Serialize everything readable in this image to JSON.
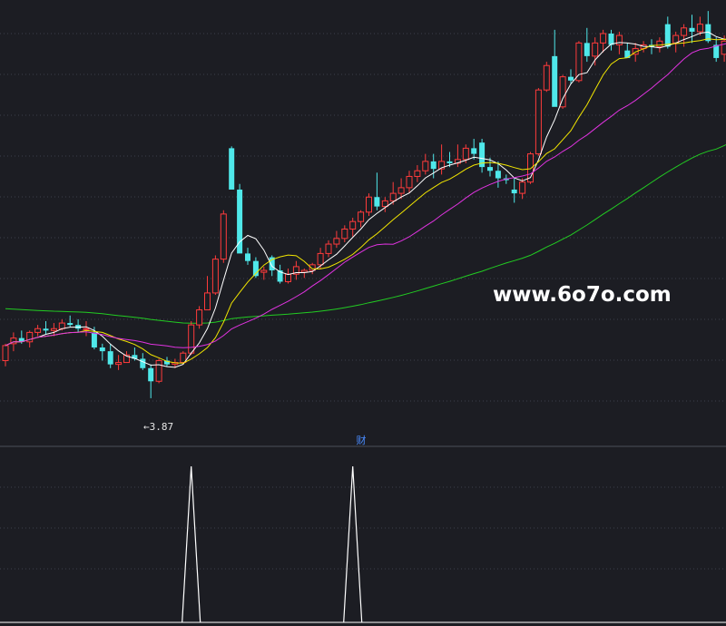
{
  "colors": {
    "background": "#1c1d23",
    "grid": "#3b3f4b",
    "up_candle": "#ff3b3b",
    "down_candle": "#4fe8ea",
    "ma5": "#ffffff",
    "ma10": "#f2e600",
    "ma20": "#e033e0",
    "ma60": "#22cc22",
    "indicator_line": "#ffffff",
    "annotation": "#e8e8e8",
    "panel_label": "#4a8cff",
    "watermark": "#ffffff"
  },
  "price_panel": {
    "low_annotation": "←3.87",
    "watermark": "www.6o7o.com"
  },
  "indicator_panel": {
    "label": "财"
  },
  "chart_data": [
    {
      "type": "candlestick",
      "title": "",
      "xlabel": "",
      "ylabel": "",
      "ylim": [
        3.72,
        5.95
      ],
      "grid": true,
      "series": [
        {
          "name": "",
          "candles": [
            [
              4.07,
              4.16,
              4.04,
              4.15
            ],
            [
              4.16,
              4.22,
              4.12,
              4.19
            ],
            [
              4.19,
              4.23,
              4.16,
              4.17
            ],
            [
              4.17,
              4.23,
              4.14,
              4.22
            ],
            [
              4.22,
              4.26,
              4.2,
              4.24
            ],
            [
              4.24,
              4.28,
              4.21,
              4.23
            ],
            [
              4.23,
              4.27,
              4.2,
              4.24
            ],
            [
              4.24,
              4.29,
              4.23,
              4.27
            ],
            [
              4.27,
              4.31,
              4.25,
              4.26
            ],
            [
              4.26,
              4.29,
              4.22,
              4.24
            ],
            [
              4.24,
              4.28,
              4.2,
              4.24
            ],
            [
              4.22,
              4.25,
              4.13,
              4.14
            ],
            [
              4.14,
              4.16,
              4.07,
              4.12
            ],
            [
              4.12,
              4.16,
              4.03,
              4.05
            ],
            [
              4.05,
              4.1,
              4.02,
              4.06
            ],
            [
              4.06,
              4.12,
              4.06,
              4.1
            ],
            [
              4.1,
              4.14,
              4.07,
              4.08
            ],
            [
              4.08,
              4.11,
              4.02,
              4.03
            ],
            [
              4.03,
              4.05,
              3.87,
              3.96
            ],
            [
              3.96,
              4.08,
              3.95,
              4.07
            ],
            [
              4.07,
              4.09,
              4.04,
              4.05
            ],
            [
              4.05,
              4.08,
              4.03,
              4.06
            ],
            [
              4.06,
              4.12,
              4.05,
              4.11
            ],
            [
              4.11,
              4.28,
              4.1,
              4.26
            ],
            [
              4.26,
              4.36,
              4.24,
              4.34
            ],
            [
              4.34,
              4.52,
              4.34,
              4.43
            ],
            [
              4.43,
              4.63,
              4.42,
              4.61
            ],
            [
              4.61,
              4.87,
              4.59,
              4.85
            ],
            [
              5.2,
              5.21,
              4.99,
              4.98
            ],
            [
              4.98,
              5.01,
              4.65,
              4.64
            ],
            [
              4.64,
              4.67,
              4.58,
              4.6
            ],
            [
              4.6,
              4.62,
              4.51,
              4.52
            ],
            [
              4.54,
              4.57,
              4.5,
              4.55
            ],
            [
              4.62,
              4.63,
              4.52,
              4.55
            ],
            [
              4.55,
              4.58,
              4.48,
              4.49
            ],
            [
              4.49,
              4.56,
              4.48,
              4.53
            ],
            [
              4.53,
              4.6,
              4.5,
              4.57
            ],
            [
              4.54,
              4.56,
              4.51,
              4.55
            ],
            [
              4.55,
              4.59,
              4.53,
              4.58
            ],
            [
              4.58,
              4.67,
              4.56,
              4.64
            ],
            [
              4.64,
              4.71,
              4.62,
              4.69
            ],
            [
              4.69,
              4.76,
              4.67,
              4.72
            ],
            [
              4.72,
              4.79,
              4.7,
              4.77
            ],
            [
              4.77,
              4.83,
              4.73,
              4.81
            ],
            [
              4.81,
              4.87,
              4.78,
              4.86
            ],
            [
              4.86,
              4.96,
              4.84,
              4.94
            ],
            [
              4.94,
              5.07,
              4.87,
              4.89
            ],
            [
              4.89,
              4.94,
              4.86,
              4.92
            ],
            [
              4.92,
              5.02,
              4.9,
              4.96
            ],
            [
              4.96,
              5.04,
              4.93,
              4.99
            ],
            [
              4.99,
              5.08,
              4.96,
              5.05
            ],
            [
              5.05,
              5.11,
              5.02,
              5.08
            ],
            [
              5.08,
              5.17,
              5.06,
              5.13
            ],
            [
              5.13,
              5.17,
              5.04,
              5.09
            ],
            [
              5.09,
              5.22,
              5.06,
              5.13
            ],
            [
              5.13,
              5.18,
              5.1,
              5.12
            ],
            [
              5.12,
              5.22,
              5.1,
              5.14
            ],
            [
              5.14,
              5.22,
              5.12,
              5.2
            ],
            [
              5.2,
              5.25,
              5.14,
              5.17
            ],
            [
              5.23,
              5.25,
              5.07,
              5.1
            ],
            [
              5.1,
              5.15,
              5.05,
              5.08
            ],
            [
              5.08,
              5.13,
              4.99,
              5.04
            ],
            [
              5.04,
              5.06,
              5.01,
              5.03
            ],
            [
              4.98,
              5.04,
              4.91,
              4.96
            ],
            [
              4.96,
              5.04,
              4.93,
              5.02
            ],
            [
              5.02,
              5.18,
              5.01,
              5.17
            ],
            [
              5.17,
              5.52,
              5.16,
              5.51
            ],
            [
              5.51,
              5.66,
              5.5,
              5.64
            ],
            [
              5.69,
              5.83,
              5.43,
              5.42
            ],
            [
              5.42,
              5.59,
              5.41,
              5.58
            ],
            [
              5.58,
              5.62,
              5.54,
              5.56
            ],
            [
              5.56,
              5.77,
              5.55,
              5.76
            ],
            [
              5.76,
              5.84,
              5.66,
              5.69
            ],
            [
              5.69,
              5.79,
              5.64,
              5.76
            ],
            [
              5.76,
              5.83,
              5.71,
              5.81
            ],
            [
              5.81,
              5.83,
              5.72,
              5.75
            ],
            [
              5.75,
              5.82,
              5.7,
              5.8
            ],
            [
              5.72,
              5.76,
              5.68,
              5.68
            ],
            [
              5.7,
              5.76,
              5.66,
              5.73
            ],
            [
              5.73,
              5.77,
              5.71,
              5.75
            ],
            [
              5.75,
              5.78,
              5.7,
              5.74
            ],
            [
              5.74,
              5.79,
              5.71,
              5.77
            ],
            [
              5.86,
              5.9,
              5.73,
              5.74
            ],
            [
              5.76,
              5.82,
              5.71,
              5.8
            ],
            [
              5.8,
              5.86,
              5.74,
              5.84
            ],
            [
              5.84,
              5.91,
              5.76,
              5.82
            ],
            [
              5.82,
              5.9,
              5.8,
              5.86
            ],
            [
              5.86,
              5.93,
              5.76,
              5.77
            ],
            [
              5.75,
              5.79,
              5.66,
              5.68
            ],
            [
              5.7,
              5.8,
              5.66,
              5.77
            ],
            [
              5.77,
              5.84,
              5.71,
              5.8
            ]
          ]
        }
      ],
      "ma_series": [
        {
          "name": "",
          "color_key": "ma5",
          "period": 5
        },
        {
          "name": "",
          "color_key": "ma10",
          "period": 10
        },
        {
          "name": "",
          "color_key": "ma20",
          "period": 20
        },
        {
          "name": "",
          "color_key": "ma60",
          "period": 60,
          "seed": 4.35
        }
      ],
      "annotations": [
        {
          "text_key": "price_panel.low_annotation",
          "candle_index": 18,
          "value": 3.87
        }
      ]
    },
    {
      "type": "line",
      "title": "",
      "xlabel": "",
      "ylabel": "",
      "ylim": [
        0,
        1
      ],
      "series": [
        {
          "name": "",
          "signal_candle_indices": [
            23,
            43
          ],
          "values_at_signal": 1,
          "values_elsewhere": 0
        }
      ]
    }
  ]
}
